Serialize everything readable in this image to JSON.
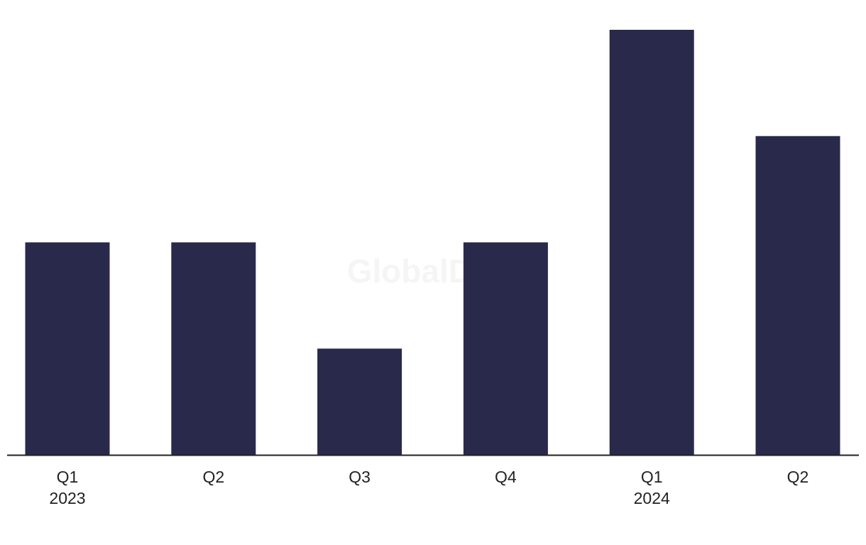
{
  "chart_data": {
    "type": "bar",
    "watermark": "GlobalData",
    "categories": [
      "Q1",
      "Q2",
      "Q3",
      "Q4",
      "Q1",
      "Q2"
    ],
    "years": [
      "2023",
      null,
      null,
      null,
      "2024",
      null
    ],
    "values": [
      2,
      2,
      1,
      2,
      4,
      3
    ],
    "color": "#29294b",
    "ylim": [
      0,
      4
    ]
  }
}
